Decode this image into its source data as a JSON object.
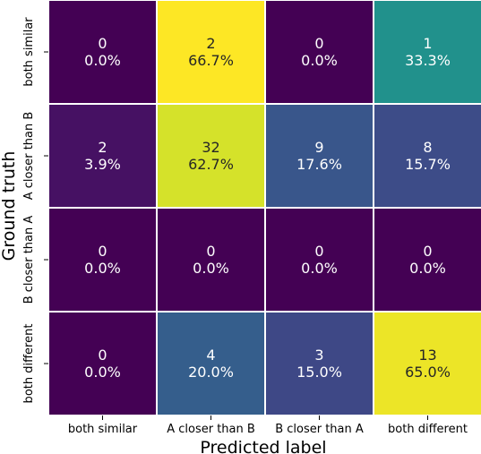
{
  "chart_data": {
    "type": "heatmap",
    "title": "",
    "xlabel": "Predicted label",
    "ylabel": "Ground truth",
    "x_categories": [
      "both similar",
      "A closer than B",
      "B closer than A",
      "both different"
    ],
    "y_categories": [
      "both similar",
      "A closer than B",
      "B closer than A",
      "both different"
    ],
    "counts": [
      [
        0,
        2,
        0,
        1
      ],
      [
        2,
        32,
        9,
        8
      ],
      [
        0,
        0,
        0,
        0
      ],
      [
        0,
        4,
        3,
        13
      ]
    ],
    "percents": [
      [
        "0.0%",
        "66.7%",
        "0.0%",
        "33.3%"
      ],
      [
        "3.9%",
        "62.7%",
        "17.6%",
        "15.7%"
      ],
      [
        "0.0%",
        "0.0%",
        "0.0%",
        "0.0%"
      ],
      [
        "0.0%",
        "20.0%",
        "15.0%",
        "65.0%"
      ]
    ],
    "colormap": "viridis",
    "color_scale": "row-normalized percentage",
    "grid": false,
    "colorbar": false
  }
}
